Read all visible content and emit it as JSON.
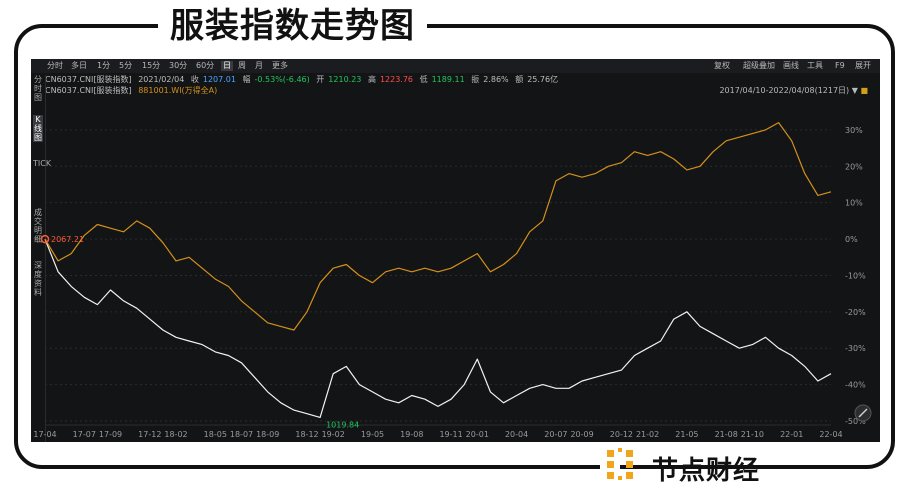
{
  "page_title": "服装指数走势图",
  "watermark": "节点财经",
  "toolbar": {
    "periods": [
      "分时",
      "多日",
      "1分",
      "5分",
      "15分",
      "30分",
      "60分",
      "日",
      "周",
      "月",
      "更多"
    ],
    "active_period": "日",
    "tools": [
      "复权",
      "超级叠加",
      "画线",
      "工具",
      "F9",
      "展开"
    ]
  },
  "left_rail": [
    "分时图",
    "K线图",
    "TICK",
    "成交明细",
    "深度资料"
  ],
  "quote": {
    "code": "CN6037.CNI[服装指数]",
    "date": "2021/02/04",
    "close_label": "收",
    "close": "1207.01",
    "change_label": "幅",
    "change": "-0.53%(-6.46)",
    "open_label": "开",
    "open": "1210.23",
    "high_label": "高",
    "high": "1223.76",
    "low_label": "低",
    "low": "1189.11",
    "amp_label": "振",
    "amp": "2.86%",
    "amount_label": "额",
    "amount": "25.76亿"
  },
  "overlay": {
    "base": "CN6037.CNI[服装指数]",
    "compare": "881001.WI(万得全A)"
  },
  "date_range": "2017/04/10-2022/04/08(1217日)",
  "colors": {
    "series_index": "#f2f2f2",
    "series_compare": "#d4901b",
    "background": "#131416",
    "marker": "#ff5a36"
  },
  "chart_data": {
    "type": "line",
    "title": "",
    "xlabel": "",
    "ylabel": "",
    "x": [
      "17-04",
      "17-05",
      "17-06",
      "17-07",
      "17-08",
      "17-09",
      "17-10",
      "17-11",
      "17-12",
      "18-01",
      "18-02",
      "18-03",
      "18-04",
      "18-05",
      "18-06",
      "18-07",
      "18-08",
      "18-09",
      "18-10",
      "18-11",
      "18-12",
      "19-01",
      "19-02",
      "19-03",
      "19-04",
      "19-05",
      "19-06",
      "19-07",
      "19-08",
      "19-09",
      "19-10",
      "19-11",
      "19-12",
      "20-01",
      "20-02",
      "20-03",
      "20-04",
      "20-05",
      "20-06",
      "20-07",
      "20-08",
      "20-09",
      "20-10",
      "20-11",
      "20-12",
      "21-01",
      "21-02",
      "21-03",
      "21-04",
      "21-05",
      "21-06",
      "21-07",
      "21-08",
      "21-09",
      "21-10",
      "21-11",
      "21-12",
      "22-01",
      "22-02",
      "22-03",
      "22-04"
    ],
    "x_ticks": [
      "17-04",
      "17-07",
      "17-09",
      "17-12",
      "18-02",
      "18-05",
      "18-07",
      "18-09",
      "18-12",
      "19-02",
      "19-05",
      "19-08",
      "19-11",
      "20-01",
      "20-04",
      "20-07",
      "20-09",
      "20-12",
      "21-02",
      "21-05",
      "21-08",
      "21-10",
      "22-01",
      "22-04"
    ],
    "y_ticks": [
      "30%",
      "20%",
      "10%",
      "0%",
      "-10%",
      "-20%",
      "-30%",
      "-40%",
      "-50%"
    ],
    "ylim": [
      -50,
      33
    ],
    "series": [
      {
        "values": [
          0,
          -9,
          -13,
          -16,
          -18,
          -14,
          -17,
          -19,
          -22,
          -25,
          -27,
          -28,
          -29,
          -31,
          -32,
          -34,
          -38,
          -42,
          -45,
          -47,
          -48,
          -49,
          -37,
          -35,
          -40,
          -42,
          -44,
          -45,
          -43,
          -44,
          -46,
          -44,
          -40,
          -33,
          -42,
          -45,
          -43,
          -41,
          -40,
          -41,
          -41,
          -39,
          -38,
          -37,
          -36,
          -32,
          -30,
          -28,
          -22,
          -20,
          -24,
          -26,
          -28,
          -30,
          -29,
          -27,
          -30,
          -32,
          -35,
          -39,
          -37
        ]
      },
      {
        "values": [
          0,
          -6,
          -4,
          1,
          4,
          3,
          2,
          5,
          3,
          -1,
          -6,
          -5,
          -8,
          -11,
          -13,
          -17,
          -20,
          -23,
          -24,
          -25,
          -20,
          -12,
          -8,
          -7,
          -10,
          -12,
          -9,
          -8,
          -9,
          -8,
          -9,
          -8,
          -6,
          -4,
          -9,
          -7,
          -4,
          2,
          5,
          16,
          18,
          17,
          18,
          20,
          21,
          24,
          23,
          24,
          22,
          19,
          20,
          24,
          27,
          28,
          29,
          30,
          32,
          27,
          18,
          12,
          13
        ]
      }
    ],
    "annotations": [
      {
        "label": "2067.21",
        "x": "17-04",
        "series": 0
      },
      {
        "label": "1019.84",
        "x": "19-01",
        "series": 0
      }
    ]
  }
}
